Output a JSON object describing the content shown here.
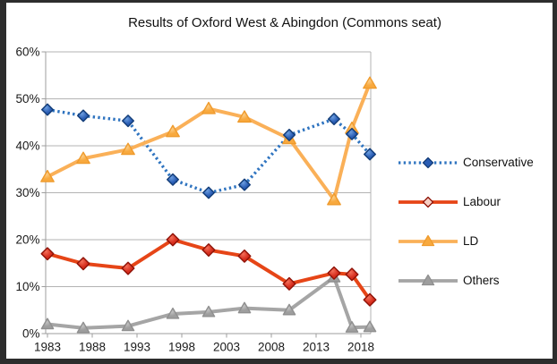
{
  "frame": {
    "border_color": "#2d2d2d",
    "background": "#ffffff"
  },
  "chart_data": {
    "type": "line",
    "title": "Results of Oxford West & Abingdon (Commons seat)",
    "xlabel": "",
    "ylabel": "",
    "x": [
      1983,
      1987,
      1992,
      1997,
      2001,
      2005,
      2010,
      2015,
      2017,
      2019
    ],
    "series": [
      {
        "name": "Conservative",
        "line_color": "#2f74c0",
        "line_style": "dotted",
        "marker": "diamond",
        "marker_fill": "#2a5db4",
        "marker_highlight": "#6d9fe0",
        "marker_stroke": "#123c77",
        "values": [
          47.7,
          46.4,
          45.3,
          32.8,
          30.0,
          31.7,
          42.3,
          45.7,
          42.5,
          38.2
        ]
      },
      {
        "name": "Labour",
        "line_color": "#e64517",
        "line_style": "solid",
        "marker": "diamond",
        "marker_fill": "#d62d1d",
        "marker_highlight": "#f4705a",
        "marker_stroke": "#8e1207",
        "legend_marker_fill": "#f6cfc4",
        "values": [
          17.0,
          14.9,
          13.9,
          20.0,
          17.8,
          16.5,
          10.6,
          12.9,
          12.6,
          7.2
        ]
      },
      {
        "name": "LD",
        "line_color": "#fab058",
        "line_style": "solid",
        "marker": "triangle",
        "marker_fill": "#f8a93e",
        "marker_highlight": "#fdd08c",
        "marker_stroke": "#ef9b2d",
        "values": [
          33.4,
          37.3,
          39.2,
          43.0,
          47.9,
          46.1,
          41.5,
          28.5,
          43.7,
          53.3
        ]
      },
      {
        "name": "Others",
        "line_color": "#a5a5a5",
        "line_style": "solid",
        "marker": "triangle",
        "marker_fill": "#9e9e9e",
        "marker_highlight": "#c6c6c6",
        "marker_stroke": "#8f8f8f",
        "values": [
          2.0,
          1.2,
          1.6,
          4.2,
          4.6,
          5.4,
          5.0,
          12.0,
          1.3,
          1.4
        ]
      }
    ],
    "x_ticks": [
      1983,
      1988,
      1993,
      1998,
      2003,
      2008,
      2013,
      2018
    ],
    "x_tick_labels": [
      "1983",
      "1988",
      "1993",
      "1998",
      "2003",
      "2008",
      "2013",
      "2018"
    ],
    "y_ticks": [
      0,
      10,
      20,
      30,
      40,
      50,
      60
    ],
    "y_tick_labels": [
      "0%",
      "10%",
      "20%",
      "30%",
      "40%",
      "50%",
      "60%"
    ],
    "ylim": [
      0,
      60
    ],
    "xlim": [
      1983,
      2019
    ],
    "grid": "horizontal",
    "grid_color": "#b3b3b3",
    "axis_color": "#9e9e9e",
    "legend_position": "right"
  }
}
